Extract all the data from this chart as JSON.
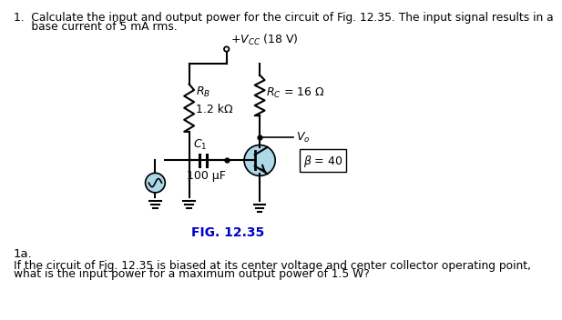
{
  "title_line1": "1.  Calculate the input and output power for the circuit of Fig. 12.35. The input signal results in a",
  "title_line2": "     base current of 5 mA rms.",
  "fig_label": "FIG. 12.35",
  "vcc_label": "$+V_{CC}$ (18 V)",
  "rc_label": "$R_C$ = 16 $\\Omega$",
  "rb_label": "$R_B$",
  "rb_val": "1.2 kΩ",
  "c1_label": "$C_1$",
  "cap_val": "100 μF",
  "vo_label": "$V_o$",
  "beta_label": "$\\beta$ = 40",
  "sub_label": "1a.",
  "bottom_line1": "If the circuit of Fig. 12.35 is biased at its center voltage and center collector operating point,",
  "bottom_line2": "what is the input power for a maximum output power of 1.5 W?",
  "fig_label_color": "#0000CC",
  "background": "#ffffff",
  "highlight_color": "#ADD8E6"
}
